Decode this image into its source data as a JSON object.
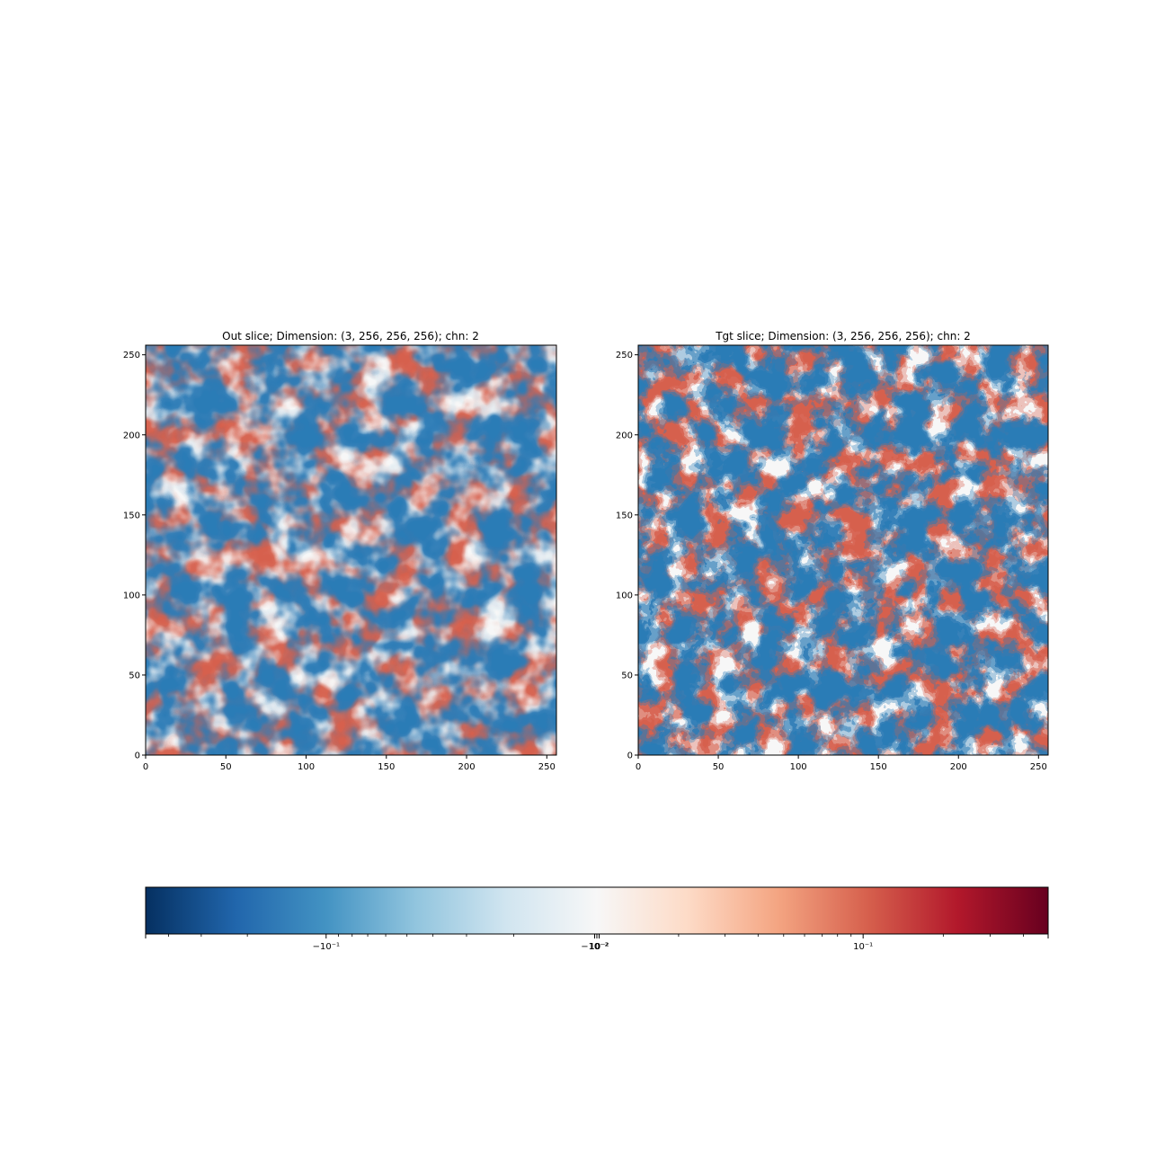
{
  "chart_data": [
    {
      "type": "heatmap",
      "title": "Out slice; Dimension: (3, 256, 256, 256); chn: 2",
      "xlim": [
        0,
        256
      ],
      "ylim": [
        0,
        256
      ],
      "xticks": [
        "0",
        "50",
        "100",
        "150",
        "200",
        "250"
      ],
      "yticks": [
        "0",
        "50",
        "100",
        "150",
        "200",
        "250"
      ],
      "grid": false,
      "colormap": "RdBu_r"
    },
    {
      "type": "heatmap",
      "title": "Tgt slice; Dimension: (3, 256, 256, 256); chn: 2",
      "xlim": [
        0,
        256
      ],
      "ylim": [
        0,
        256
      ],
      "xticks": [
        "0",
        "50",
        "100",
        "150",
        "200",
        "250"
      ],
      "yticks": [
        "0",
        "50",
        "100",
        "150",
        "200",
        "250"
      ],
      "grid": false,
      "colormap": "RdBu_r"
    }
  ],
  "colorbar": {
    "orientation": "horizontal",
    "scale": "symlog",
    "labels": [
      "−10⁻¹",
      "−10⁻²",
      "0",
      "10⁻²",
      "10⁻¹"
    ],
    "colors": [
      "#053061",
      "#2166ac",
      "#4393c3",
      "#92c5de",
      "#d1e5f0",
      "#f7f7f7",
      "#fddbc7",
      "#f4a582",
      "#d6604d",
      "#b2182b",
      "#67001f"
    ]
  }
}
